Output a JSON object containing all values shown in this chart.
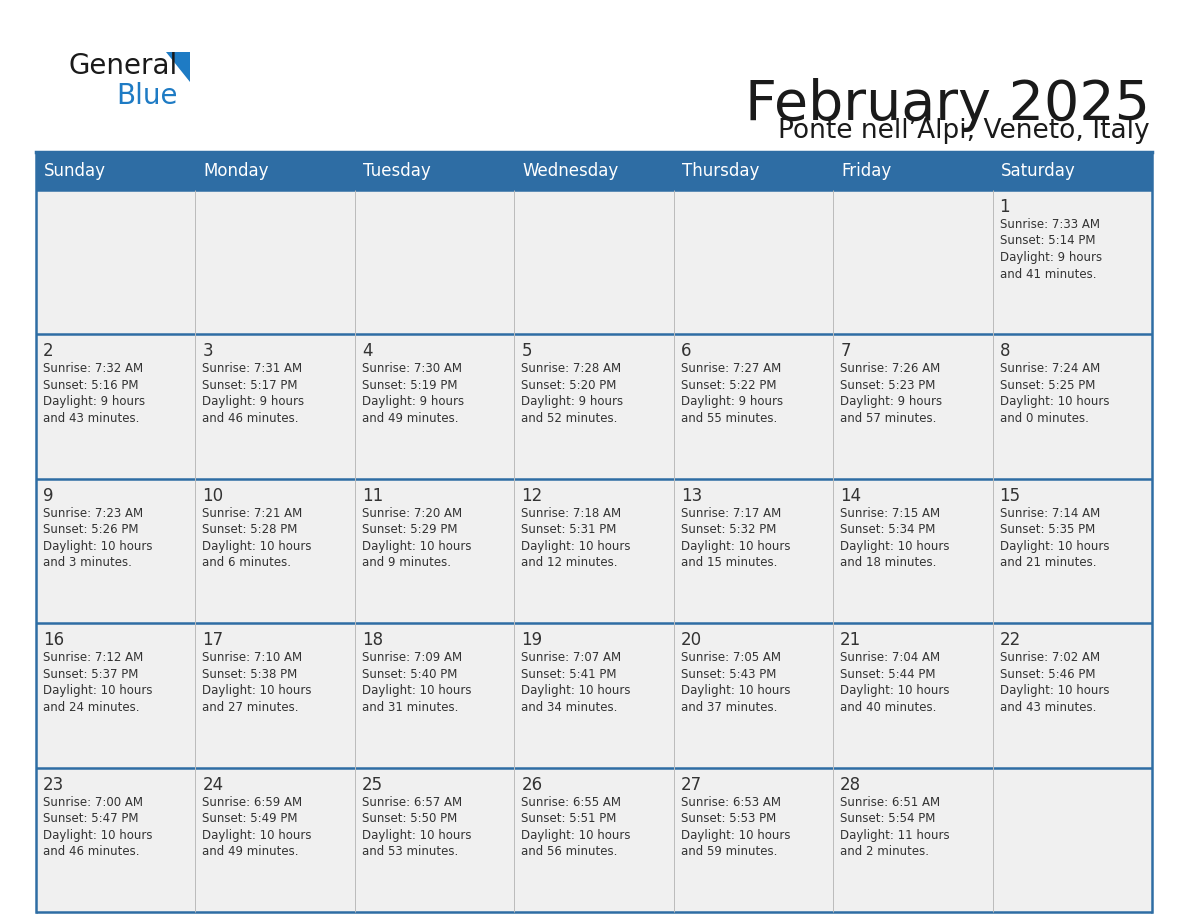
{
  "title": "February 2025",
  "subtitle": "Ponte nell’Alpi, Veneto, Italy",
  "days_of_week": [
    "Sunday",
    "Monday",
    "Tuesday",
    "Wednesday",
    "Thursday",
    "Friday",
    "Saturday"
  ],
  "header_bg": "#2E6DA4",
  "header_text": "#FFFFFF",
  "cell_bg": "#F0F0F0",
  "border_color": "#2E6DA4",
  "row_border_color": "#2E6DA4",
  "text_color": "#333333",
  "title_color": "#1a1a1a",
  "logo_general_color": "#1a1a1a",
  "logo_blue_color": "#1e7bc4",
  "calendar": [
    [
      {
        "day": null,
        "info": ""
      },
      {
        "day": null,
        "info": ""
      },
      {
        "day": null,
        "info": ""
      },
      {
        "day": null,
        "info": ""
      },
      {
        "day": null,
        "info": ""
      },
      {
        "day": null,
        "info": ""
      },
      {
        "day": 1,
        "info": "Sunrise: 7:33 AM\nSunset: 5:14 PM\nDaylight: 9 hours\nand 41 minutes."
      }
    ],
    [
      {
        "day": 2,
        "info": "Sunrise: 7:32 AM\nSunset: 5:16 PM\nDaylight: 9 hours\nand 43 minutes."
      },
      {
        "day": 3,
        "info": "Sunrise: 7:31 AM\nSunset: 5:17 PM\nDaylight: 9 hours\nand 46 minutes."
      },
      {
        "day": 4,
        "info": "Sunrise: 7:30 AM\nSunset: 5:19 PM\nDaylight: 9 hours\nand 49 minutes."
      },
      {
        "day": 5,
        "info": "Sunrise: 7:28 AM\nSunset: 5:20 PM\nDaylight: 9 hours\nand 52 minutes."
      },
      {
        "day": 6,
        "info": "Sunrise: 7:27 AM\nSunset: 5:22 PM\nDaylight: 9 hours\nand 55 minutes."
      },
      {
        "day": 7,
        "info": "Sunrise: 7:26 AM\nSunset: 5:23 PM\nDaylight: 9 hours\nand 57 minutes."
      },
      {
        "day": 8,
        "info": "Sunrise: 7:24 AM\nSunset: 5:25 PM\nDaylight: 10 hours\nand 0 minutes."
      }
    ],
    [
      {
        "day": 9,
        "info": "Sunrise: 7:23 AM\nSunset: 5:26 PM\nDaylight: 10 hours\nand 3 minutes."
      },
      {
        "day": 10,
        "info": "Sunrise: 7:21 AM\nSunset: 5:28 PM\nDaylight: 10 hours\nand 6 minutes."
      },
      {
        "day": 11,
        "info": "Sunrise: 7:20 AM\nSunset: 5:29 PM\nDaylight: 10 hours\nand 9 minutes."
      },
      {
        "day": 12,
        "info": "Sunrise: 7:18 AM\nSunset: 5:31 PM\nDaylight: 10 hours\nand 12 minutes."
      },
      {
        "day": 13,
        "info": "Sunrise: 7:17 AM\nSunset: 5:32 PM\nDaylight: 10 hours\nand 15 minutes."
      },
      {
        "day": 14,
        "info": "Sunrise: 7:15 AM\nSunset: 5:34 PM\nDaylight: 10 hours\nand 18 minutes."
      },
      {
        "day": 15,
        "info": "Sunrise: 7:14 AM\nSunset: 5:35 PM\nDaylight: 10 hours\nand 21 minutes."
      }
    ],
    [
      {
        "day": 16,
        "info": "Sunrise: 7:12 AM\nSunset: 5:37 PM\nDaylight: 10 hours\nand 24 minutes."
      },
      {
        "day": 17,
        "info": "Sunrise: 7:10 AM\nSunset: 5:38 PM\nDaylight: 10 hours\nand 27 minutes."
      },
      {
        "day": 18,
        "info": "Sunrise: 7:09 AM\nSunset: 5:40 PM\nDaylight: 10 hours\nand 31 minutes."
      },
      {
        "day": 19,
        "info": "Sunrise: 7:07 AM\nSunset: 5:41 PM\nDaylight: 10 hours\nand 34 minutes."
      },
      {
        "day": 20,
        "info": "Sunrise: 7:05 AM\nSunset: 5:43 PM\nDaylight: 10 hours\nand 37 minutes."
      },
      {
        "day": 21,
        "info": "Sunrise: 7:04 AM\nSunset: 5:44 PM\nDaylight: 10 hours\nand 40 minutes."
      },
      {
        "day": 22,
        "info": "Sunrise: 7:02 AM\nSunset: 5:46 PM\nDaylight: 10 hours\nand 43 minutes."
      }
    ],
    [
      {
        "day": 23,
        "info": "Sunrise: 7:00 AM\nSunset: 5:47 PM\nDaylight: 10 hours\nand 46 minutes."
      },
      {
        "day": 24,
        "info": "Sunrise: 6:59 AM\nSunset: 5:49 PM\nDaylight: 10 hours\nand 49 minutes."
      },
      {
        "day": 25,
        "info": "Sunrise: 6:57 AM\nSunset: 5:50 PM\nDaylight: 10 hours\nand 53 minutes."
      },
      {
        "day": 26,
        "info": "Sunrise: 6:55 AM\nSunset: 5:51 PM\nDaylight: 10 hours\nand 56 minutes."
      },
      {
        "day": 27,
        "info": "Sunrise: 6:53 AM\nSunset: 5:53 PM\nDaylight: 10 hours\nand 59 minutes."
      },
      {
        "day": 28,
        "info": "Sunrise: 6:51 AM\nSunset: 5:54 PM\nDaylight: 11 hours\nand 2 minutes."
      },
      {
        "day": null,
        "info": ""
      }
    ]
  ]
}
